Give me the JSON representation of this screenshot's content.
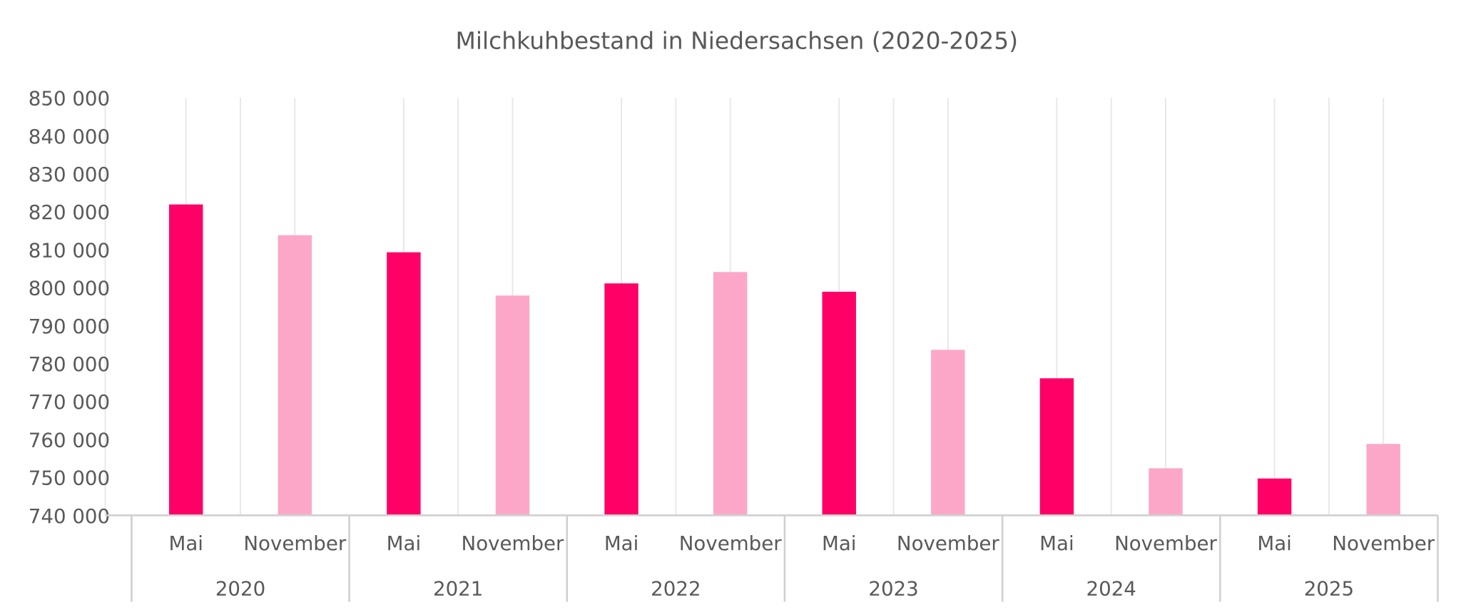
{
  "chart_data": {
    "type": "bar",
    "title": "Milchkuhbestand in Niedersachsen (2020-2025)",
    "xlabel": "",
    "ylabel": "",
    "ylim": [
      740000,
      850000
    ],
    "y_ticks": [
      740000,
      750000,
      760000,
      770000,
      780000,
      790000,
      800000,
      810000,
      820000,
      830000,
      840000,
      850000
    ],
    "y_tick_labels": [
      "740 000",
      "750 000",
      "760 000",
      "770 000",
      "780 000",
      "790 000",
      "800 000",
      "810 000",
      "820 000",
      "830 000",
      "840 000",
      "850 000"
    ],
    "groups": [
      "2020",
      "2021",
      "2022",
      "2023",
      "2024",
      "2025"
    ],
    "subcategories": [
      "Mai",
      "November"
    ],
    "categories": [
      "Mai",
      "November",
      "Mai",
      "November",
      "Mai",
      "November",
      "Mai",
      "November",
      "Mai",
      "November",
      "Mai",
      "November"
    ],
    "values": [
      821900,
      813800,
      809300,
      797900,
      801100,
      804100,
      798900,
      783600,
      776100,
      752400,
      749700,
      758800
    ],
    "colors": {
      "Mai": "#ff0066",
      "November": "#fda7c8",
      "grid": "#e8e8e8",
      "axis": "#d0d0d0",
      "text": "#595959"
    },
    "grid": true,
    "legend": "none"
  }
}
